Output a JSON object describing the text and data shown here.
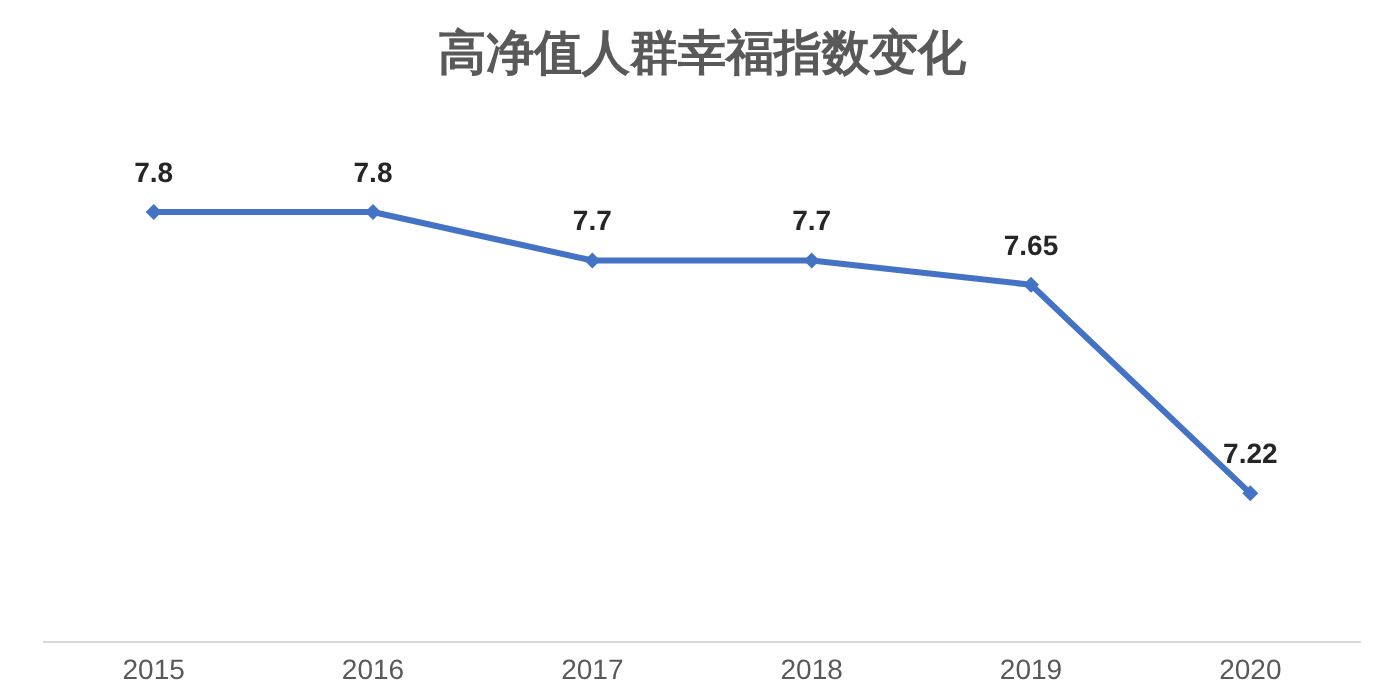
{
  "chart_data": {
    "type": "line",
    "title": "高净值人群幸福指数变化",
    "categories": [
      "2015",
      "2016",
      "2017",
      "2018",
      "2019",
      "2020"
    ],
    "series": [
      {
        "color": "#4472c4",
        "values": [
          7.8,
          7.8,
          7.7,
          7.7,
          7.65,
          7.22
        ]
      }
    ],
    "tick_labels": "x",
    "grid": false,
    "legend": false,
    "marker": "diamond",
    "line_style": "solid",
    "data_labels": true
  }
}
